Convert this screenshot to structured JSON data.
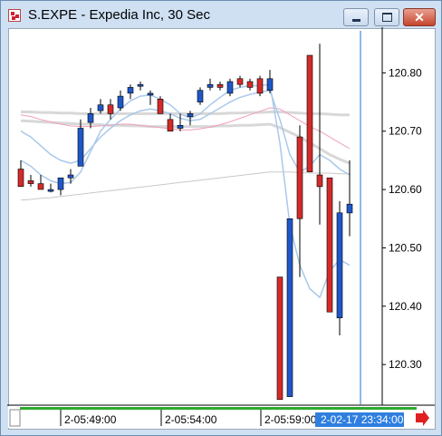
{
  "window": {
    "title": "S.EXPE - Expedia Inc, 30 Sec",
    "buttons": [
      "minimize",
      "maximize",
      "close"
    ]
  },
  "colors": {
    "up": "#1f57c8",
    "down": "#d42a2a",
    "ma_fast": "#a9c9ea",
    "ma_slow": "#f0a0b8",
    "band": "#d8d8d8",
    "ma_long": "#c8c8c8",
    "cursor_line": "#1f70d0",
    "timeline": "#2eaa2e",
    "scroll_arrow": "#e02020"
  },
  "chart_data": {
    "type": "candlestick",
    "title": "S.EXPE - Expedia Inc, 30 Sec",
    "y_ticks": [
      "120.80",
      "120.70",
      "120.60",
      "120.50",
      "120.40",
      "120.30"
    ],
    "ylim": [
      120.235,
      120.872
    ],
    "x_labels": [
      "2-05:49:00",
      "2-05:54:00",
      "2-05:59:00"
    ],
    "cursor_time_label": "2-02-17 23:34:00",
    "candles": [
      {
        "o": 120.635,
        "h": 120.65,
        "l": 120.61,
        "c": 120.605
      },
      {
        "o": 120.615,
        "h": 120.625,
        "l": 120.605,
        "c": 120.61
      },
      {
        "o": 120.61,
        "h": 120.625,
        "l": 120.6,
        "c": 120.6
      },
      {
        "o": 120.6,
        "h": 120.61,
        "l": 120.595,
        "c": 120.6
      },
      {
        "o": 120.6,
        "h": 120.615,
        "l": 120.59,
        "c": 120.62
      },
      {
        "o": 120.62,
        "h": 120.635,
        "l": 120.61,
        "c": 120.625
      },
      {
        "o": 120.64,
        "h": 120.72,
        "l": 120.64,
        "c": 120.705
      },
      {
        "o": 120.715,
        "h": 120.74,
        "l": 120.705,
        "c": 120.73
      },
      {
        "o": 120.735,
        "h": 120.755,
        "l": 120.73,
        "c": 120.745
      },
      {
        "o": 120.745,
        "h": 120.755,
        "l": 120.72,
        "c": 120.73
      },
      {
        "o": 120.74,
        "h": 120.77,
        "l": 120.735,
        "c": 120.76
      },
      {
        "o": 120.765,
        "h": 120.78,
        "l": 120.755,
        "c": 120.775
      },
      {
        "o": 120.78,
        "h": 120.785,
        "l": 120.77,
        "c": 120.78
      },
      {
        "o": 120.765,
        "h": 120.77,
        "l": 120.745,
        "c": 120.765
      },
      {
        "o": 120.755,
        "h": 120.76,
        "l": 120.73,
        "c": 120.73
      },
      {
        "o": 120.72,
        "h": 120.73,
        "l": 120.7,
        "c": 120.7
      },
      {
        "o": 120.705,
        "h": 120.73,
        "l": 120.7,
        "c": 120.71
      },
      {
        "o": 120.725,
        "h": 120.735,
        "l": 120.71,
        "c": 120.73
      },
      {
        "o": 120.75,
        "h": 120.775,
        "l": 120.745,
        "c": 120.77
      },
      {
        "o": 120.775,
        "h": 120.79,
        "l": 120.77,
        "c": 120.78
      },
      {
        "o": 120.78,
        "h": 120.785,
        "l": 120.77,
        "c": 120.775
      },
      {
        "o": 120.765,
        "h": 120.79,
        "l": 120.76,
        "c": 120.785
      },
      {
        "o": 120.79,
        "h": 120.795,
        "l": 120.775,
        "c": 120.78
      },
      {
        "o": 120.785,
        "h": 120.79,
        "l": 120.77,
        "c": 120.775
      },
      {
        "o": 120.79,
        "h": 120.795,
        "l": 120.76,
        "c": 120.765
      },
      {
        "o": 120.77,
        "h": 120.805,
        "l": 120.765,
        "c": 120.79
      },
      {
        "o": 120.45,
        "h": 120.45,
        "l": 120.24,
        "c": 120.24
      },
      {
        "o": 120.245,
        "h": 120.55,
        "l": 120.245,
        "c": 120.55
      },
      {
        "o": 120.69,
        "h": 120.71,
        "l": 120.45,
        "c": 120.55
      },
      {
        "o": 120.83,
        "h": 120.83,
        "l": 120.63,
        "c": 120.63
      },
      {
        "o": 120.625,
        "h": 120.85,
        "l": 120.54,
        "c": 120.605
      },
      {
        "o": 120.62,
        "h": 120.62,
        "l": 120.39,
        "c": 120.39
      },
      {
        "o": 120.38,
        "h": 120.58,
        "l": 120.35,
        "c": 120.56
      },
      {
        "o": 120.56,
        "h": 120.65,
        "l": 120.52,
        "c": 120.575
      }
    ],
    "ma_fast": [
      120.65,
      120.64,
      120.625,
      120.615,
      120.61,
      120.612,
      120.63,
      120.665,
      120.7,
      120.72,
      120.738,
      120.752,
      120.76,
      120.762,
      120.755,
      120.745,
      120.73,
      120.722,
      120.73,
      120.745,
      120.758,
      120.77,
      120.775,
      120.778,
      120.778,
      120.78,
      120.68,
      120.54,
      120.47,
      120.43,
      120.415,
      120.46,
      120.48,
      120.47
    ],
    "ma_fast2": [
      120.7,
      120.69,
      120.675,
      120.66,
      120.65,
      120.645,
      120.65,
      120.67,
      120.69,
      120.705,
      120.718,
      120.728,
      120.735,
      120.738,
      120.735,
      120.73,
      120.722,
      120.718,
      120.72,
      120.73,
      120.74,
      120.75,
      120.758,
      120.763,
      120.767,
      120.77,
      120.72,
      120.66,
      120.63,
      120.64,
      120.66,
      120.65,
      120.635,
      120.625
    ],
    "ma_slow": [
      120.728,
      120.725,
      120.72,
      120.716,
      120.712,
      120.709,
      120.708,
      120.708,
      120.709,
      120.71,
      120.712,
      120.712,
      120.71,
      120.708,
      120.706,
      120.704,
      120.702,
      120.702,
      120.704,
      120.707,
      120.711,
      120.716,
      120.722,
      120.728,
      120.734,
      120.74,
      120.738,
      120.728,
      120.718,
      120.708,
      120.7,
      120.69,
      120.68,
      120.67
    ],
    "band_upper": [
      120.733,
      120.733,
      120.732,
      120.732,
      120.731,
      120.731,
      120.73,
      120.73,
      120.73,
      120.73,
      120.73,
      120.73,
      120.73,
      120.73,
      120.73,
      120.73,
      120.73,
      120.73,
      120.73,
      120.73,
      120.73,
      120.731,
      120.731,
      120.732,
      120.732,
      120.733,
      120.733,
      120.732,
      120.731,
      120.73,
      120.73,
      120.729,
      120.728,
      120.728
    ],
    "band_lower": [
      120.718,
      120.717,
      120.716,
      120.715,
      120.714,
      120.713,
      120.712,
      120.712,
      120.711,
      120.71,
      120.71,
      120.709,
      120.709,
      120.708,
      120.708,
      120.708,
      120.708,
      120.708,
      120.708,
      120.708,
      120.709,
      120.709,
      120.71,
      120.71,
      120.711,
      120.712,
      120.706,
      120.698,
      120.69,
      120.68,
      120.67,
      120.66,
      120.652,
      120.645
    ],
    "ma_long": [
      120.582,
      120.583,
      120.585,
      120.586,
      120.588,
      120.59,
      120.592,
      120.594,
      120.596,
      120.598,
      120.6,
      120.602,
      120.604,
      120.606,
      120.608,
      120.61,
      120.612,
      120.614,
      120.616,
      120.618,
      120.62,
      120.622,
      120.624,
      120.626,
      120.628,
      120.63,
      120.63,
      120.63,
      120.629,
      120.628,
      120.628,
      120.628,
      120.627,
      120.627
    ]
  }
}
